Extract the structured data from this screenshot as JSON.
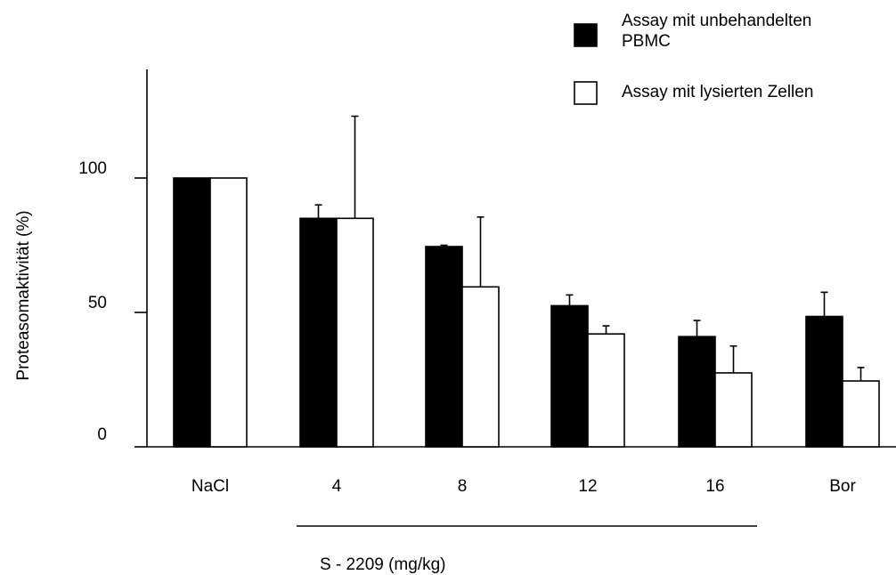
{
  "chart_data": {
    "type": "bar",
    "categories": [
      "NaCl",
      "4",
      "8",
      "12",
      "16",
      "Bor"
    ],
    "series": [
      {
        "name": "Assay mit  unbehandelten PBMC",
        "name_lines": [
          "Assay mit  unbehandelten",
          "PBMC"
        ],
        "color": "#000000",
        "values": [
          100,
          85,
          74.5,
          52.5,
          41,
          48.5
        ],
        "errors": [
          0,
          5,
          0.5,
          4,
          6,
          9
        ]
      },
      {
        "name": "Assay mit lysierten Zellen",
        "name_lines": [
          "Assay mit lysierten Zellen"
        ],
        "color": "#ffffff",
        "values": [
          100,
          85,
          59.5,
          42,
          27.5,
          24.5
        ],
        "errors": [
          0,
          38,
          26,
          3,
          10,
          5
        ]
      }
    ],
    "ylabel": "Proteasomaktivität (%)",
    "yticks": [
      0,
      50,
      100
    ],
    "ylim": [
      0,
      140
    ],
    "group_label": "S  - 2209 (mg/kg)",
    "grid": false,
    "legend_position": "top-right"
  }
}
